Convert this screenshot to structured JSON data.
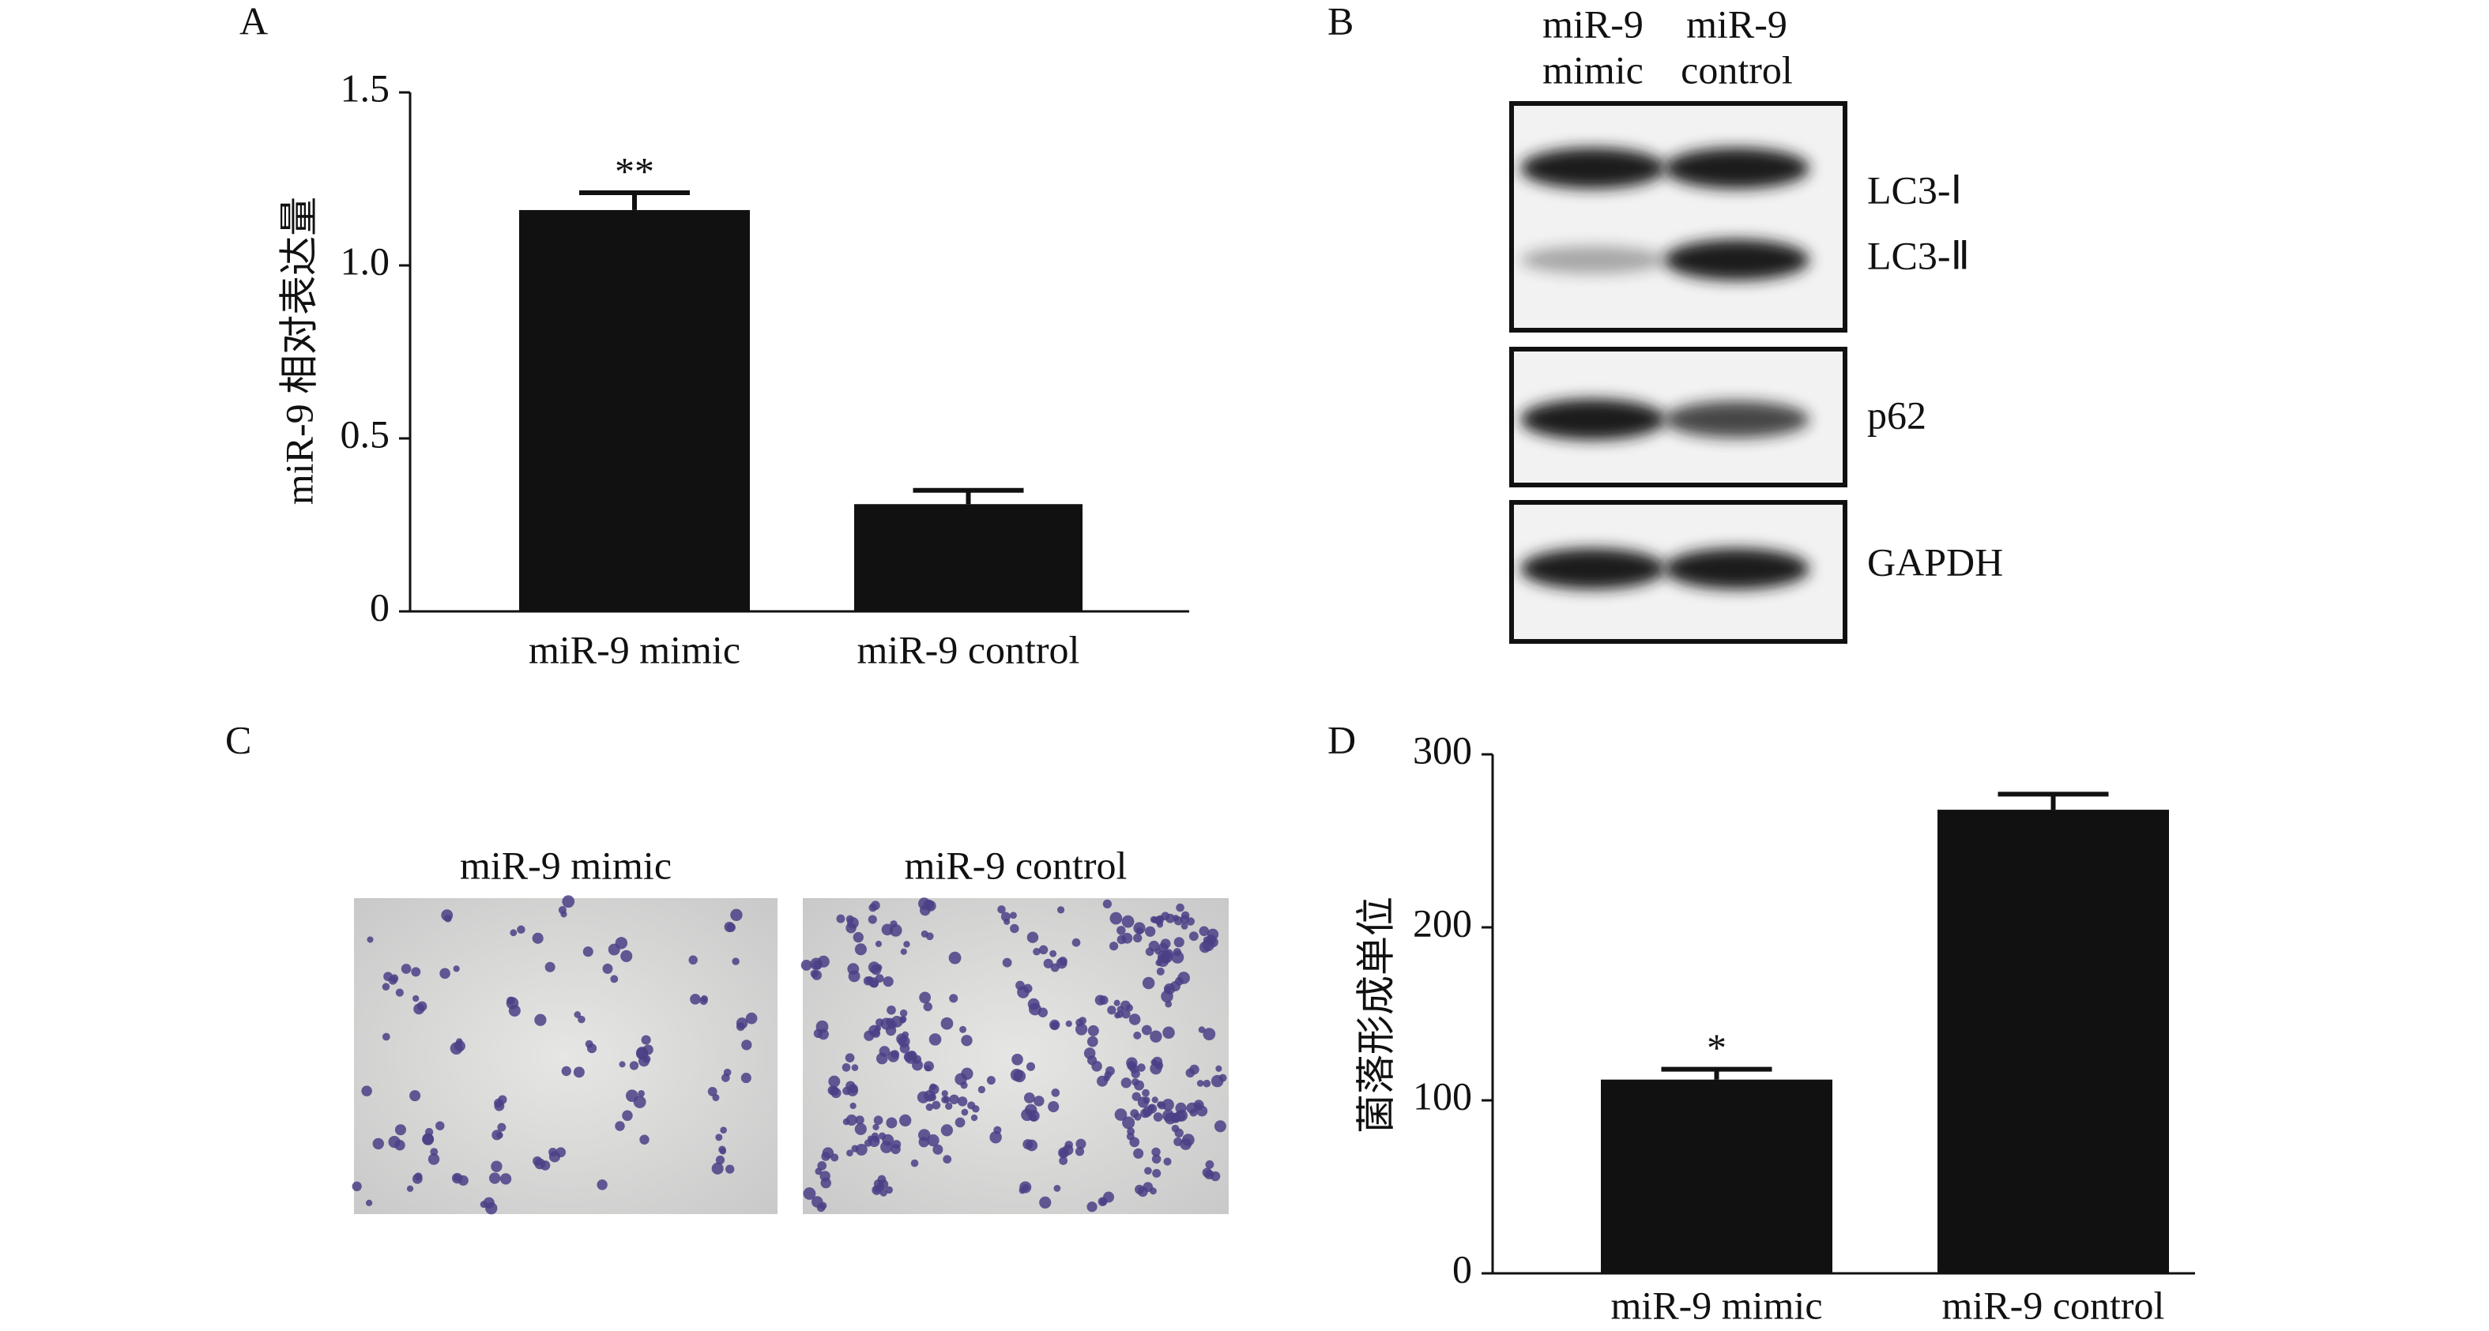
{
  "panel_labels": [
    "A",
    "B",
    "C",
    "D"
  ],
  "chart_data": [
    {
      "type": "bar",
      "ylabel": "miR-9 相对表达量",
      "categories": [
        "miR-9 mimic",
        "miR-9 control"
      ],
      "values": [
        1.16,
        0.31
      ],
      "errors": [
        0.05,
        0.04
      ],
      "annotations": [
        "**",
        null
      ],
      "color": "#111111",
      "ylim": [
        0,
        1.5
      ],
      "yticks": [
        0,
        0.5,
        {
          "value": 1,
          "label": "1.0"
        },
        1.5
      ]
    },
    {
      "type": "bar",
      "ylabel": "菌落形成单位",
      "categories": [
        "miR-9 mimic",
        "miR-9 control"
      ],
      "values": [
        112,
        268
      ],
      "errors": [
        6,
        9
      ],
      "annotations": [
        "*",
        null
      ],
      "color": "#111111",
      "ylim": [
        0,
        300
      ],
      "yticks": [
        0,
        100,
        200,
        300
      ]
    }
  ],
  "blot": {
    "columns": [
      [
        "miR-9",
        "mimic"
      ],
      [
        "miR-9",
        "control"
      ]
    ],
    "bands": [
      "LC3-Ⅰ",
      "LC3-Ⅱ",
      "p62",
      "GAPDH"
    ]
  },
  "images": {
    "captions": [
      "miR-9 mimic",
      "miR-9 control"
    ]
  }
}
